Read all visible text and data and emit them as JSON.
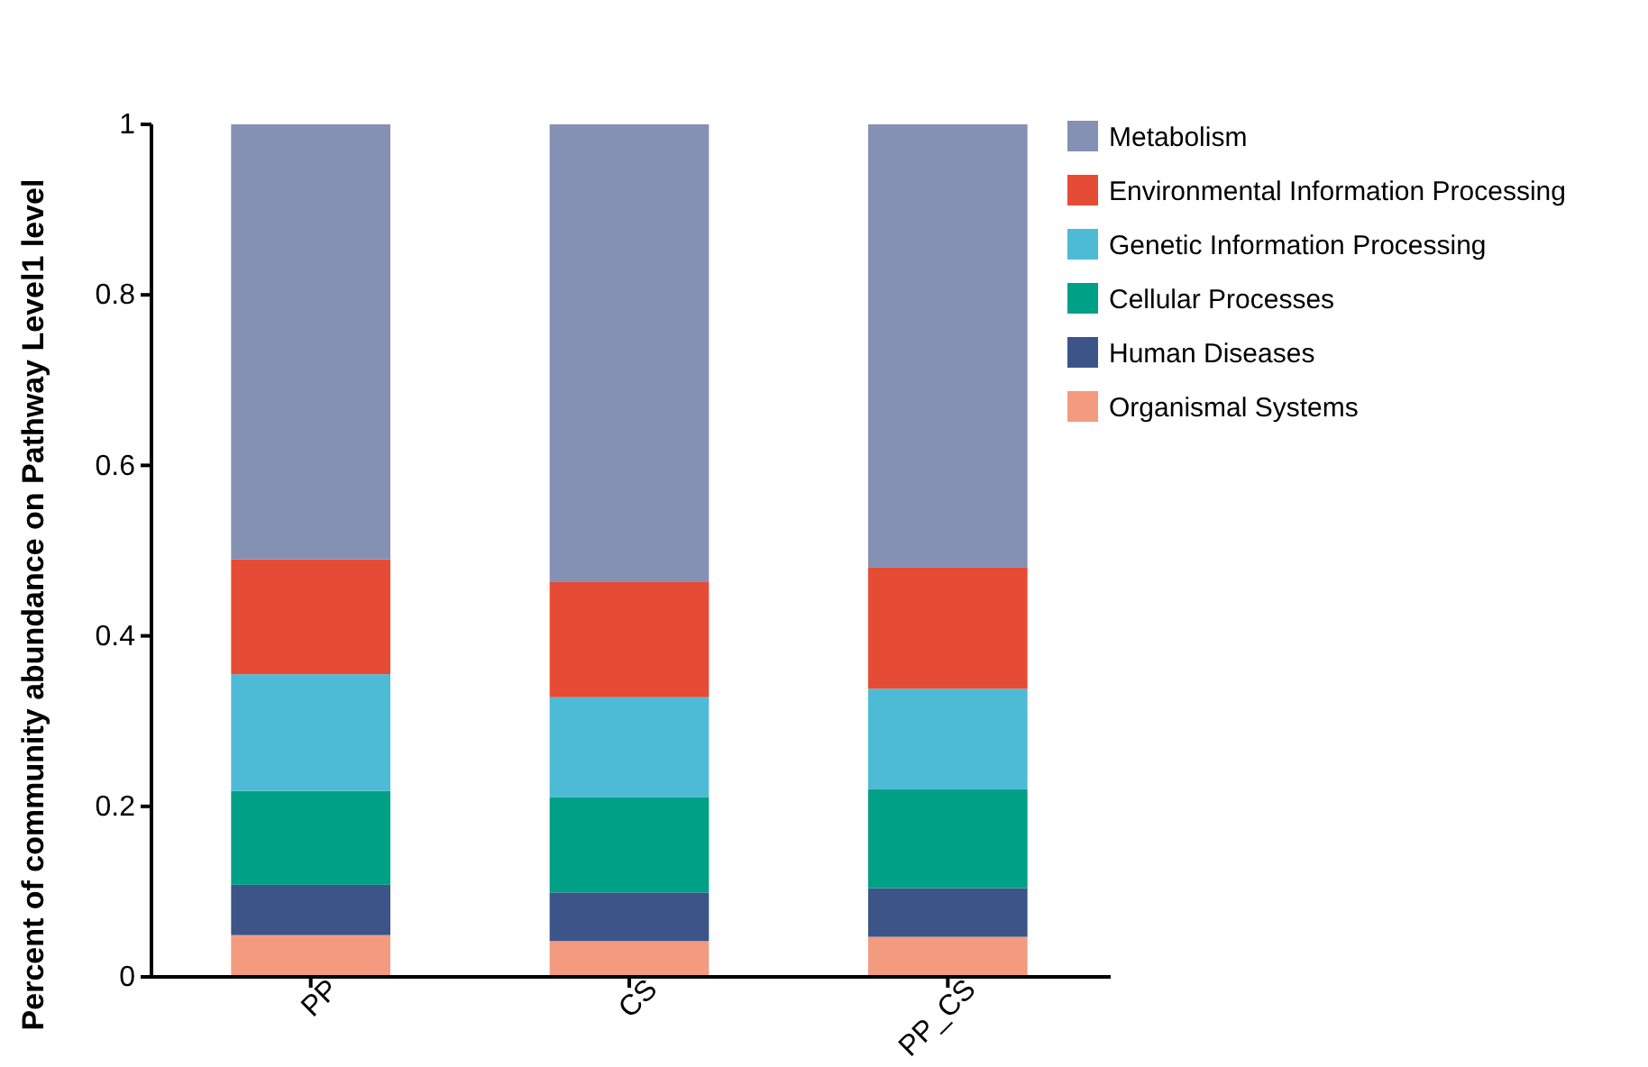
{
  "chart_data": {
    "type": "bar",
    "stacked": true,
    "ylabel": "Percent of community abundance on Pathway Level1 level",
    "categories": [
      "PP",
      "CS",
      "PP_CS"
    ],
    "series": [
      {
        "name": "Organismal Systems",
        "color": "#f39b7f",
        "values": [
          0.049,
          0.042,
          0.047
        ]
      },
      {
        "name": "Human Diseases",
        "color": "#3c5488",
        "values": [
          0.059,
          0.057,
          0.057
        ]
      },
      {
        "name": "Cellular Processes",
        "color": "#00a087",
        "values": [
          0.11,
          0.112,
          0.116
        ]
      },
      {
        "name": "Genetic Information Processing",
        "color": "#4dbbd5",
        "values": [
          0.137,
          0.117,
          0.118
        ]
      },
      {
        "name": "Environmental Information Processing",
        "color": "#e64b35",
        "values": [
          0.135,
          0.135,
          0.142
        ]
      },
      {
        "name": "Metabolism",
        "color": "#8491b4",
        "values": [
          0.51,
          0.537,
          0.52
        ]
      }
    ],
    "ylim": [
      0,
      1
    ],
    "yticks": [
      0,
      0.2,
      0.4,
      0.6,
      0.8,
      1
    ],
    "legend": "top right",
    "grid": false
  }
}
